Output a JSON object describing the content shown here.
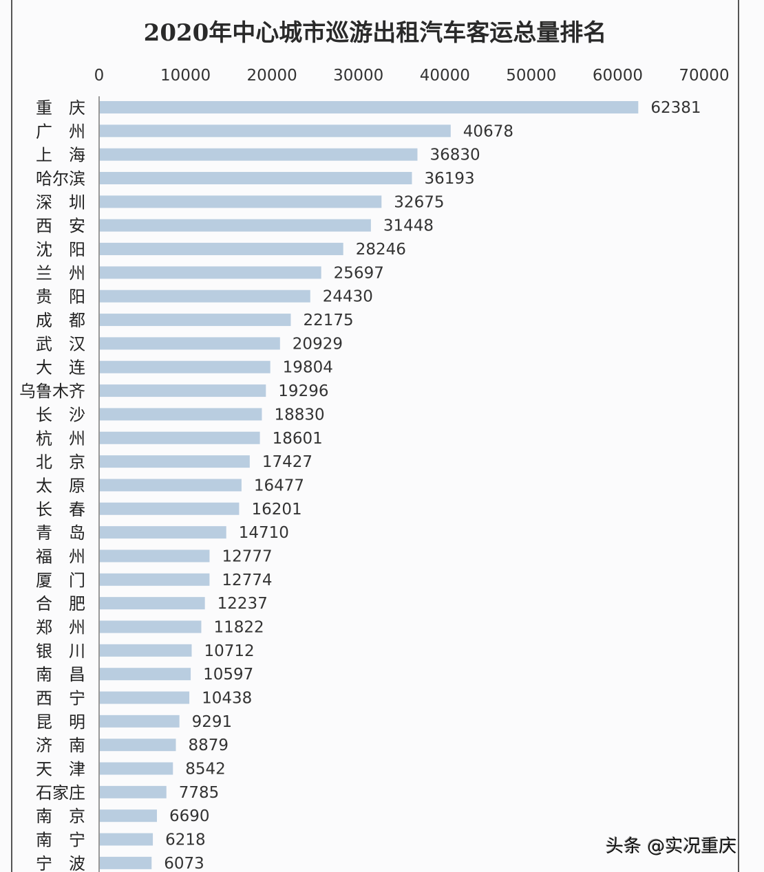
{
  "chart_data": {
    "type": "bar",
    "orientation": "horizontal",
    "title": "2020年中心城市巡游出租汽车客运总量排名",
    "xlim": [
      0,
      70000
    ],
    "x_ticks": [
      "0",
      "10000",
      "20000",
      "30000",
      "40000",
      "50000",
      "60000",
      "70000"
    ],
    "x_axis_position": "top",
    "grid": false,
    "bar_color": "#b9cde0",
    "categories": [
      "重庆",
      "广州",
      "上海",
      "哈尔滨",
      "深圳",
      "西安",
      "沈阳",
      "兰州",
      "贵阳",
      "成都",
      "武汉",
      "大连",
      "乌鲁木齐",
      "长沙",
      "杭州",
      "北京",
      "太原",
      "长春",
      "青岛",
      "福州",
      "厦门",
      "合肥",
      "郑州",
      "银川",
      "南昌",
      "西宁",
      "昆明",
      "济南",
      "天津",
      "石家庄",
      "南京",
      "南宁",
      "宁波"
    ],
    "values": [
      62381,
      40678,
      36830,
      36193,
      32675,
      31448,
      28246,
      25697,
      24430,
      22175,
      20929,
      19804,
      19296,
      18830,
      18601,
      17427,
      16477,
      16201,
      14710,
      12777,
      12774,
      12237,
      11822,
      10712,
      10597,
      10438,
      9291,
      8879,
      8542,
      7785,
      6690,
      6218,
      6073
    ]
  },
  "watermark": "头条 @实况重庆"
}
